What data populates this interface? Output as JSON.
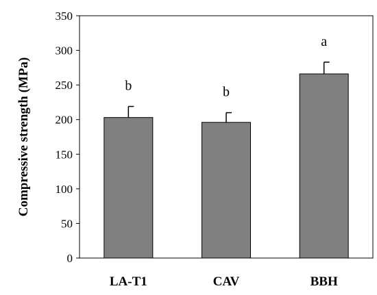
{
  "chart_data": {
    "type": "bar",
    "title": "",
    "xlabel": "",
    "ylabel": "Compressive strength (MPa)",
    "ylim": [
      0,
      350
    ],
    "yticks": [
      0,
      50,
      100,
      150,
      200,
      250,
      300,
      350
    ],
    "grid": false,
    "categories": [
      "LA-T1",
      "CAV",
      "BBH"
    ],
    "values": [
      203,
      196,
      266
    ],
    "errors": [
      16,
      14,
      17
    ],
    "significance_labels": [
      "b",
      "b",
      "a"
    ],
    "bar_color": "#808080"
  }
}
